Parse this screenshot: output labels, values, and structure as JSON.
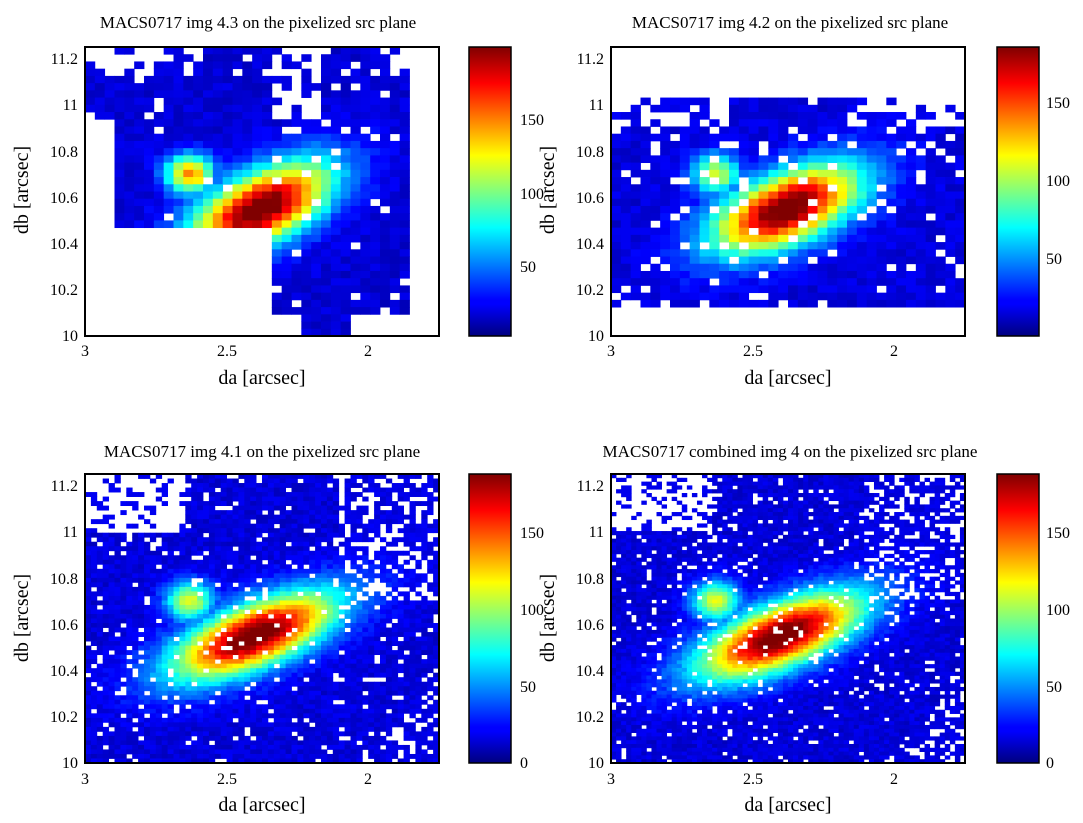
{
  "colormap": "jet",
  "chart_data": [
    {
      "type": "heatmap",
      "title": "MACS0717 img 4.3 on the pixelized src plane",
      "xlabel": "da [arcsec]",
      "ylabel": "db [arcsec]",
      "xlim": [
        3.0,
        1.75
      ],
      "ylim": [
        10.0,
        11.25
      ],
      "x_ticks": [
        "3",
        "2.5",
        "2"
      ],
      "y_ticks": [
        "10",
        "10.2",
        "10.4",
        "10.6",
        "10.8",
        "11",
        "11.2"
      ],
      "colorbar": {
        "range": [
          0,
          195
        ],
        "ticks": [
          "50",
          "100",
          "150"
        ]
      },
      "peak": {
        "x": 2.38,
        "y": 10.55,
        "value": 190
      },
      "source_shape": {
        "sigma_major_arcsec": 0.2,
        "sigma_minor_arcsec": 0.1,
        "position_angle_deg": -35
      },
      "coverage": "irregular region, upper-left block plus a tail extending down to 10.0 near da 2.2; blank below db 10.47 left of da 2.3",
      "grid_cells": [
        36,
        40
      ]
    },
    {
      "type": "heatmap",
      "title": "MACS0717 img 4.2 on the pixelized src plane",
      "xlabel": "da [arcsec]",
      "ylabel": "db [arcsec]",
      "xlim": [
        3.0,
        1.75
      ],
      "ylim": [
        10.0,
        11.25
      ],
      "x_ticks": [
        "3",
        "2.5",
        "2"
      ],
      "y_ticks": [
        "10",
        "10.2",
        "10.4",
        "10.6",
        "10.8",
        "11",
        "11.2"
      ],
      "colorbar": {
        "range": [
          0,
          185
        ],
        "ticks": [
          "50",
          "100",
          "150"
        ]
      },
      "peak": {
        "x": 2.38,
        "y": 10.55,
        "value": 180
      },
      "source_shape": {
        "sigma_major_arcsec": 0.2,
        "sigma_minor_arcsec": 0.1,
        "position_angle_deg": -30
      },
      "coverage": "band roughly db 10.15 to 11.0",
      "grid_cells": [
        36,
        40
      ]
    },
    {
      "type": "heatmap",
      "title": "MACS0717 img 4.1 on the pixelized src plane",
      "xlabel": "da [arcsec]",
      "ylabel": "db [arcsec]",
      "xlim": [
        3.0,
        1.75
      ],
      "ylim": [
        10.0,
        11.25
      ],
      "x_ticks": [
        "3",
        "2.5",
        "2"
      ],
      "y_ticks": [
        "10",
        "10.2",
        "10.4",
        "10.6",
        "10.8",
        "11",
        "11.2"
      ],
      "colorbar": {
        "range": [
          0,
          185
        ],
        "ticks": [
          "0",
          "50",
          "100",
          "150"
        ]
      },
      "peak": {
        "x": 2.4,
        "y": 10.55,
        "value": 180
      },
      "source_shape": {
        "sigma_major_arcsec": 0.22,
        "sigma_minor_arcsec": 0.09,
        "position_angle_deg": -28
      },
      "coverage": "most of the plane, sparse upper-right region",
      "grid_cells": [
        60,
        64
      ]
    },
    {
      "type": "heatmap",
      "title": "MACS0717 combined img 4 on the pixelized src plane",
      "xlabel": "da [arcsec]",
      "ylabel": "db [arcsec]",
      "xlim": [
        3.0,
        1.75
      ],
      "ylim": [
        10.0,
        11.25
      ],
      "x_ticks": [
        "3",
        "2.5",
        "2"
      ],
      "y_ticks": [
        "10",
        "10.2",
        "10.4",
        "10.6",
        "10.8",
        "11",
        "11.2"
      ],
      "colorbar": {
        "range": [
          0,
          190
        ],
        "ticks": [
          "0",
          "50",
          "100",
          "150"
        ]
      },
      "peak": {
        "x": 2.4,
        "y": 10.55,
        "value": 185
      },
      "source_shape": {
        "sigma_major_arcsec": 0.22,
        "sigma_minor_arcsec": 0.09,
        "position_angle_deg": -28
      },
      "coverage": "most of the plane, sparse upper-right region",
      "grid_cells": [
        70,
        76
      ]
    }
  ]
}
